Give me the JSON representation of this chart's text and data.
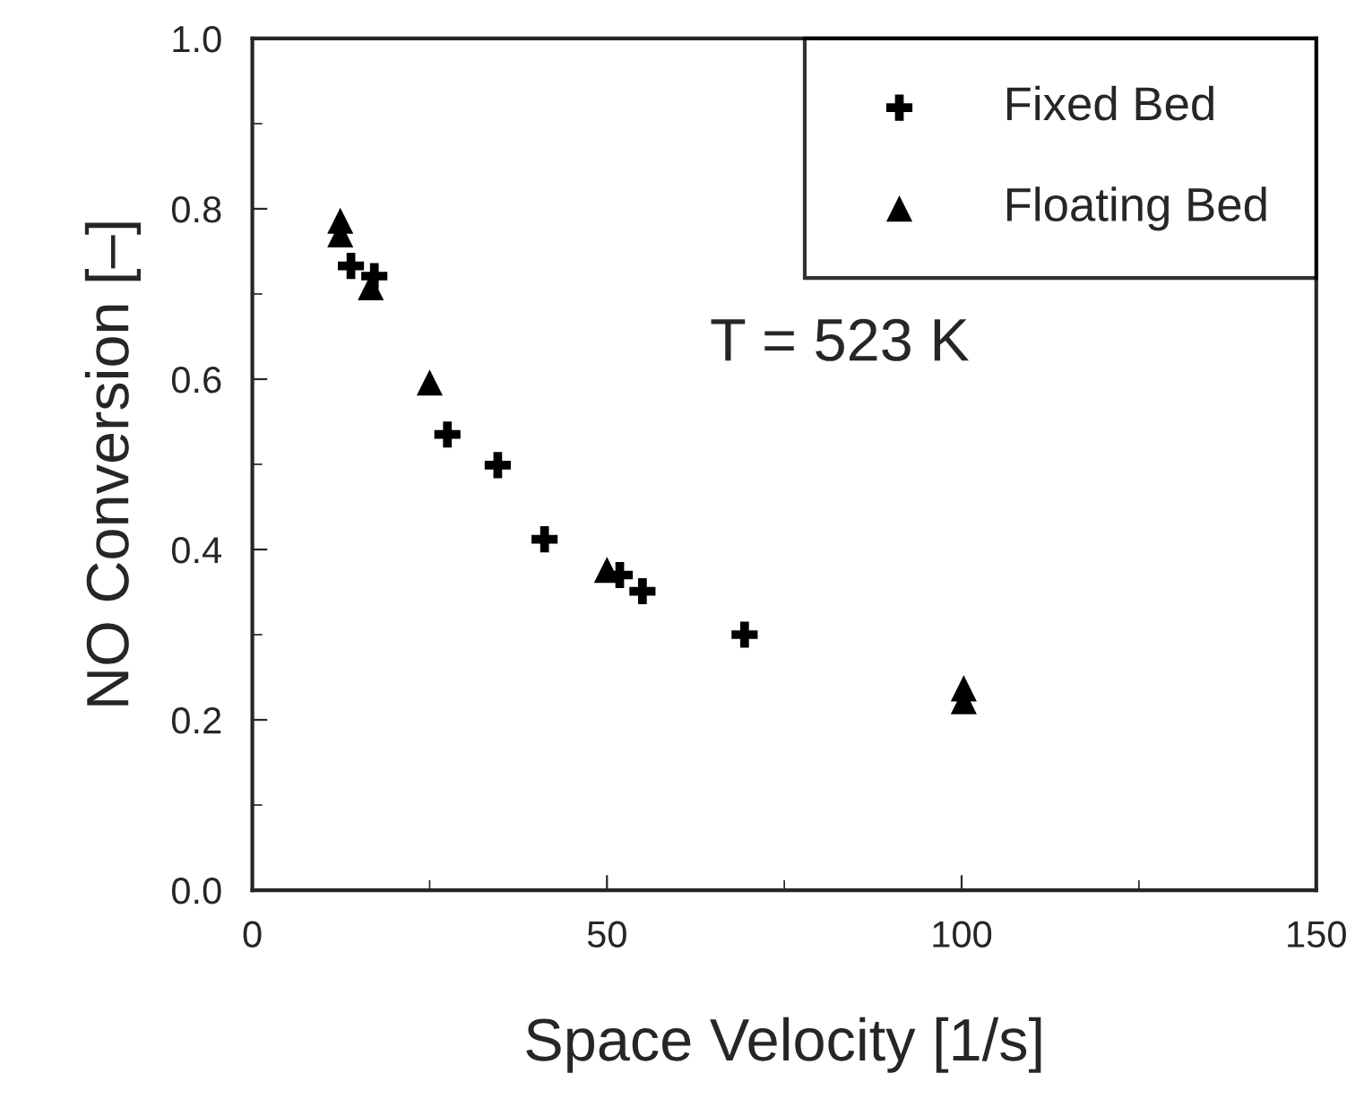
{
  "chart_data": {
    "type": "scatter",
    "xlabel": "Space Velocity [1/s]",
    "ylabel": "NO Conversion [–]",
    "xlim": [
      0,
      150
    ],
    "xticks": [
      0,
      50,
      100,
      150
    ],
    "ylim": [
      0,
      1.0
    ],
    "yticks": [
      {
        "value": 0,
        "label": "0.0"
      },
      0.2,
      0.4,
      0.6,
      0.8,
      {
        "value": 1.0,
        "label": "1.0"
      }
    ],
    "grid": false,
    "legend": "top right",
    "annotations": [
      "T = 523 K"
    ],
    "series": [
      {
        "name": "Fixed Bed",
        "color": "#000000",
        "marker": "cross",
        "x": [
          13.9,
          17.2,
          27.5,
          34.6,
          41.2,
          51.8,
          55.0,
          69.4
        ],
        "values": [
          0.733,
          0.721,
          0.535,
          0.499,
          0.412,
          0.37,
          0.351,
          0.3
        ]
      },
      {
        "name": "Floating Bed",
        "color": "#000000",
        "marker": "triangle",
        "x": [
          12.4,
          12.4,
          16.7,
          25.0,
          50.0,
          100.3,
          100.3
        ],
        "values": [
          0.786,
          0.77,
          0.708,
          0.596,
          0.376,
          0.237,
          0.222
        ]
      }
    ]
  }
}
